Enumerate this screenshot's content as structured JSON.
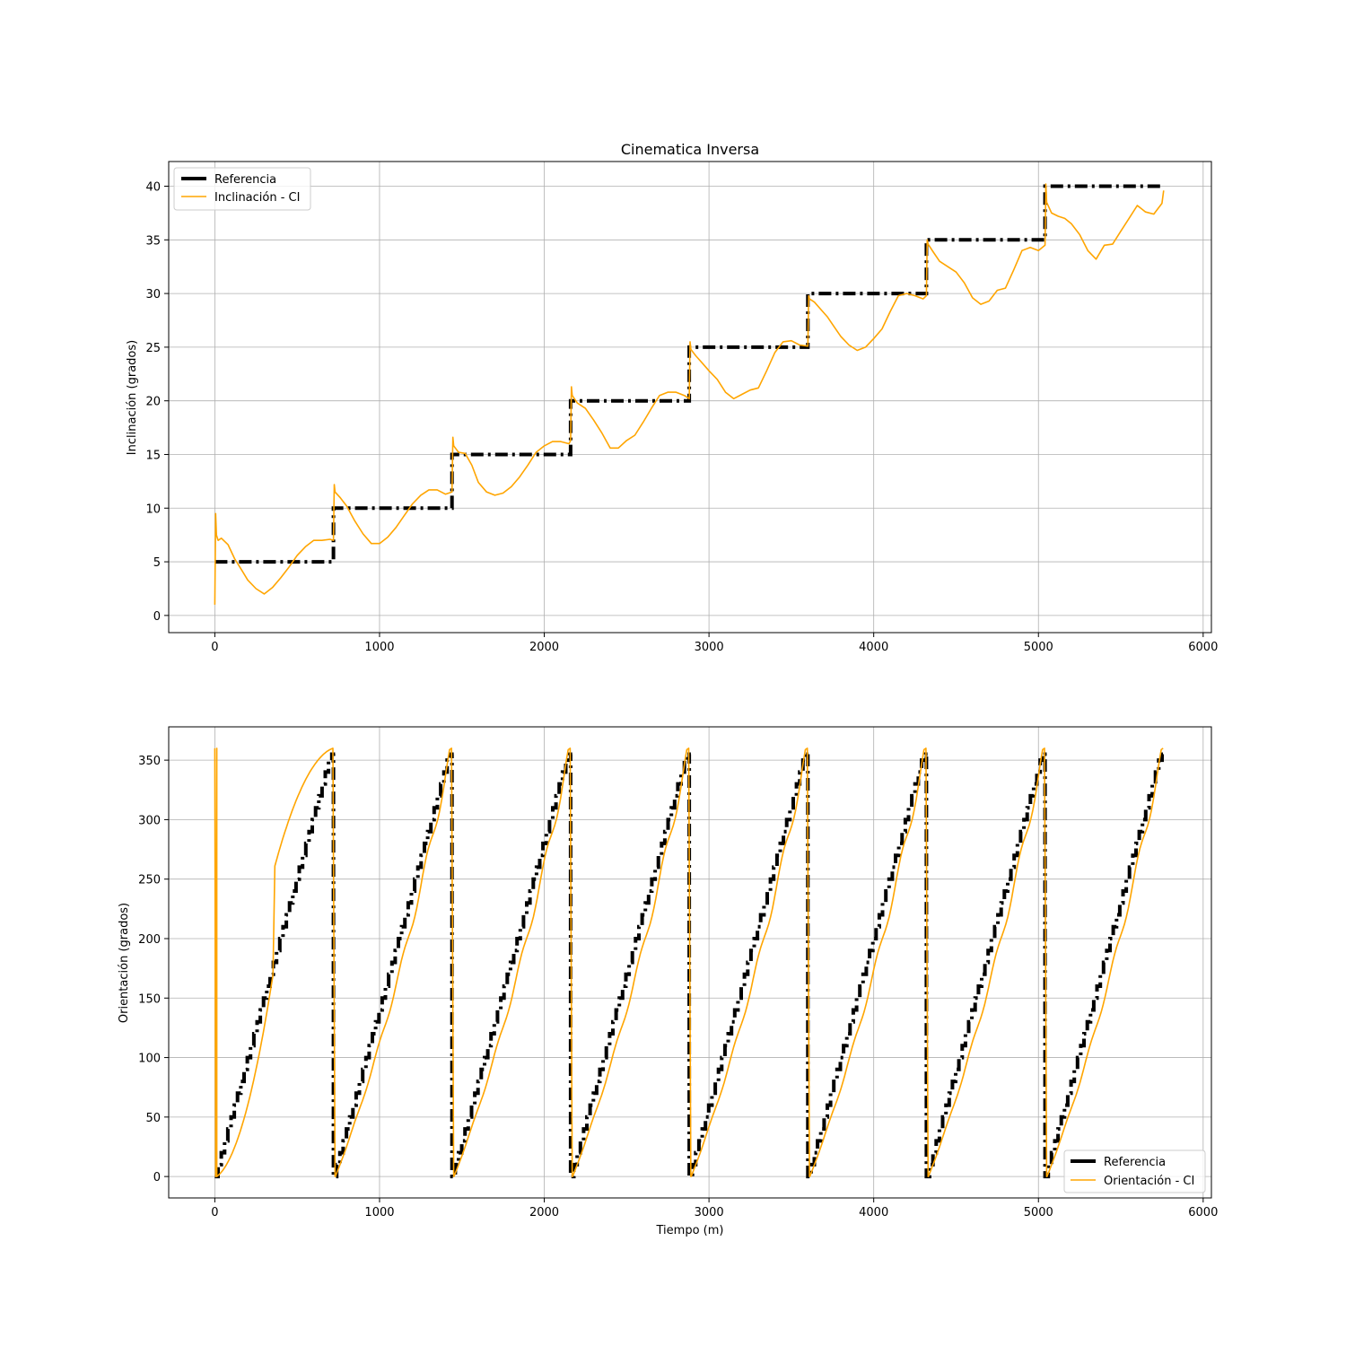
{
  "chart_data": [
    {
      "type": "line",
      "title": "Cinematica Inversa",
      "xlabel": "",
      "ylabel": "Inclinación (grados)",
      "xlim": [
        -280,
        6050
      ],
      "ylim": [
        -1.6,
        42.3
      ],
      "xticks": [
        0,
        1000,
        2000,
        3000,
        4000,
        5000,
        6000
      ],
      "yticks": [
        0,
        5,
        10,
        15,
        20,
        25,
        30,
        35,
        40
      ],
      "grid": true,
      "legend_position": "upper left",
      "series": [
        {
          "name": "Referencia",
          "color": "#000000",
          "style": "dashdot",
          "x": [
            0,
            720,
            720,
            1440,
            1440,
            2160,
            2160,
            2880,
            2880,
            3600,
            3600,
            4320,
            4320,
            5040,
            5040,
            5760
          ],
          "y": [
            5,
            5,
            10,
            10,
            15,
            15,
            20,
            20,
            25,
            25,
            30,
            30,
            35,
            35,
            40,
            40
          ]
        },
        {
          "name": "Inclinación - CI",
          "color": "#FFA500",
          "style": "solid",
          "x": [
            0,
            5,
            10,
            20,
            40,
            80,
            120,
            160,
            200,
            250,
            300,
            350,
            400,
            450,
            500,
            550,
            600,
            650,
            700,
            720,
            725,
            730,
            760,
            800,
            850,
            900,
            950,
            1000,
            1050,
            1100,
            1150,
            1200,
            1250,
            1300,
            1350,
            1400,
            1440,
            1445,
            1450,
            1480,
            1520,
            1560,
            1600,
            1650,
            1700,
            1750,
            1800,
            1850,
            1900,
            1950,
            2000,
            2050,
            2100,
            2150,
            2160,
            2165,
            2170,
            2200,
            2250,
            2300,
            2350,
            2400,
            2450,
            2500,
            2550,
            2600,
            2650,
            2700,
            2750,
            2800,
            2850,
            2880,
            2885,
            2890,
            2920,
            2960,
            3000,
            3050,
            3100,
            3150,
            3200,
            3250,
            3300,
            3350,
            3400,
            3450,
            3500,
            3550,
            3600,
            3605,
            3610,
            3640,
            3680,
            3720,
            3760,
            3800,
            3850,
            3900,
            3950,
            4000,
            4050,
            4100,
            4150,
            4200,
            4250,
            4300,
            4320,
            4325,
            4330,
            4360,
            4400,
            4450,
            4500,
            4550,
            4600,
            4650,
            4700,
            4750,
            4800,
            4850,
            4900,
            4950,
            5000,
            5040,
            5045,
            5050,
            5080,
            5120,
            5160,
            5200,
            5250,
            5300,
            5350,
            5400,
            5450,
            5500,
            5550,
            5600,
            5650,
            5700,
            5750,
            5760
          ],
          "y": [
            1.0,
            9.5,
            7.5,
            7.0,
            7.2,
            6.6,
            5.3,
            4.3,
            3.3,
            2.5,
            2.0,
            2.6,
            3.5,
            4.5,
            5.6,
            6.4,
            7.0,
            7.0,
            7.1,
            7.0,
            12.2,
            11.5,
            11.0,
            10.2,
            8.8,
            7.6,
            6.7,
            6.7,
            7.3,
            8.2,
            9.3,
            10.4,
            11.2,
            11.7,
            11.7,
            11.3,
            11.5,
            16.6,
            15.8,
            15.2,
            15.1,
            14.0,
            12.4,
            11.5,
            11.2,
            11.4,
            12.0,
            12.9,
            14.0,
            15.2,
            15.8,
            16.2,
            16.2,
            16.0,
            16.3,
            21.3,
            20.5,
            19.8,
            19.3,
            18.2,
            17.0,
            15.6,
            15.6,
            16.3,
            16.8,
            18.0,
            19.3,
            20.5,
            20.8,
            20.8,
            20.5,
            20.2,
            25.5,
            24.8,
            24.2,
            23.5,
            22.8,
            22.0,
            20.8,
            20.2,
            20.6,
            21.0,
            21.2,
            22.8,
            24.5,
            25.5,
            25.6,
            25.2,
            25.1,
            29.8,
            29.5,
            29.2,
            28.5,
            27.8,
            26.9,
            26.0,
            25.2,
            24.7,
            25.0,
            25.8,
            26.7,
            28.3,
            29.8,
            30.0,
            29.8,
            29.5,
            29.8,
            35.0,
            34.6,
            33.9,
            33.0,
            32.5,
            32.0,
            31.0,
            29.6,
            29.0,
            29.3,
            30.3,
            30.5,
            32.2,
            34.0,
            34.3,
            34.0,
            34.5,
            40.2,
            38.5,
            37.5,
            37.2,
            37.0,
            36.5,
            35.5,
            34.0,
            33.2,
            34.5,
            34.6,
            35.8,
            37.0,
            38.2,
            37.6,
            37.4,
            38.4,
            39.6
          ]
        }
      ]
    },
    {
      "type": "line",
      "title": "",
      "xlabel": "Tiempo (m)",
      "ylabel": "Orientación (grados)",
      "xlim": [
        -280,
        6050
      ],
      "ylim": [
        -18,
        378
      ],
      "xticks": [
        0,
        1000,
        2000,
        3000,
        4000,
        5000,
        6000
      ],
      "yticks": [
        0,
        50,
        100,
        150,
        200,
        250,
        300,
        350
      ],
      "grid": true,
      "legend_position": "lower right",
      "period": 720,
      "periods": 8,
      "series": [
        {
          "name": "Referencia",
          "color": "#000000",
          "style": "dashdot",
          "shape": "sawtooth staircase 0 to 355 each period of 720"
        },
        {
          "name": "Orientación - CI",
          "color": "#FFA500",
          "style": "solid",
          "shape": "sawtooth 0 to 360 each period of 720, resets at period starts"
        }
      ]
    }
  ]
}
